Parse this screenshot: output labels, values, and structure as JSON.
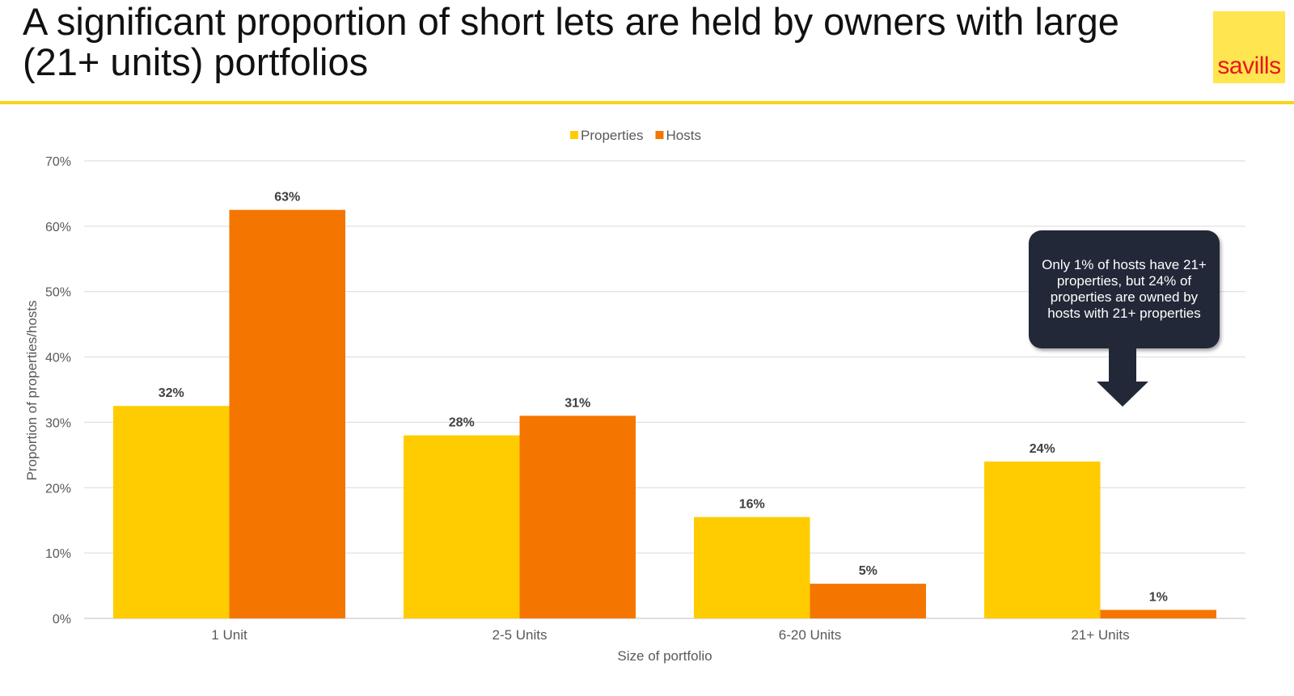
{
  "page": {
    "title": "A significant proportion of short lets are held by owners with large (21+ units) portfolios",
    "logo_text": "savills",
    "logo_bg": "#ffe54f",
    "logo_text_color": "#e5181e",
    "rule_color": "#f7d417"
  },
  "callout": {
    "text": "Only 1% of hosts have 21+ properties, but 24% of properties are owned by hosts with 21+ properties",
    "bg": "#232838"
  },
  "chart_data": {
    "type": "bar",
    "categories": [
      "1 Unit",
      "2-5 Units",
      "6-20 Units",
      "21+ Units"
    ],
    "series": [
      {
        "name": "Properties",
        "values": [
          32.5,
          28,
          15.5,
          24
        ],
        "labels": [
          "32%",
          "28%",
          "16%",
          "24%"
        ],
        "color": "#fecc00"
      },
      {
        "name": "Hosts",
        "values": [
          62.5,
          31,
          5.3,
          1.3
        ],
        "labels": [
          "63%",
          "31%",
          "5%",
          "1%"
        ],
        "color": "#f47600"
      }
    ],
    "xlabel": "Size of portfolio",
    "ylabel": "Proportion of properties/hosts",
    "ylim": [
      0,
      70
    ],
    "yticks": [
      0,
      10,
      20,
      30,
      40,
      50,
      60,
      70
    ],
    "ytick_labels": [
      "0%",
      "10%",
      "20%",
      "30%",
      "40%",
      "50%",
      "60%",
      "70%"
    ],
    "grid": true,
    "legend_position": "top-center"
  }
}
